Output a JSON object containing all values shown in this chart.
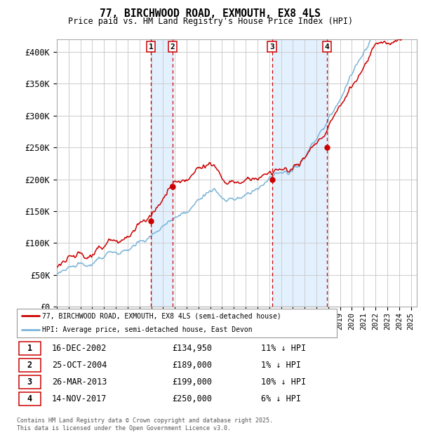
{
  "title": "77, BIRCHWOOD ROAD, EXMOUTH, EX8 4LS",
  "subtitle": "Price paid vs. HM Land Registry's House Price Index (HPI)",
  "ylabel_ticks": [
    "£0",
    "£50K",
    "£100K",
    "£150K",
    "£200K",
    "£250K",
    "£300K",
    "£350K",
    "£400K"
  ],
  "ytick_vals": [
    0,
    50000,
    100000,
    150000,
    200000,
    250000,
    300000,
    350000,
    400000
  ],
  "ylim": [
    0,
    420000
  ],
  "xlim_start": 1995.0,
  "xlim_end": 2025.5,
  "sale_dates": [
    2002.96,
    2004.81,
    2013.23,
    2017.87
  ],
  "sale_prices": [
    134950,
    189000,
    199000,
    250000
  ],
  "sale_labels": [
    "1",
    "2",
    "3",
    "4"
  ],
  "vline_color": "#cc0000",
  "shade_color": "#ddeeff",
  "legend_line1": "77, BIRCHWOOD ROAD, EXMOUTH, EX8 4LS (semi-detached house)",
  "legend_line2": "HPI: Average price, semi-detached house, East Devon",
  "table_data": [
    [
      "1",
      "16-DEC-2002",
      "£134,950",
      "11% ↓ HPI"
    ],
    [
      "2",
      "25-OCT-2004",
      "£189,000",
      "1% ↓ HPI"
    ],
    [
      "3",
      "26-MAR-2013",
      "£199,000",
      "10% ↓ HPI"
    ],
    [
      "4",
      "14-NOV-2017",
      "£250,000",
      "6% ↓ HPI"
    ]
  ],
  "footnote": "Contains HM Land Registry data © Crown copyright and database right 2025.\nThis data is licensed under the Open Government Licence v3.0.",
  "hpi_color": "#7ab4d8",
  "price_color": "#cc0000",
  "dot_color": "#cc0000",
  "bg_color": "#ffffff",
  "grid_color": "#cccccc",
  "hpi_seed": 10,
  "price_seed": 20
}
